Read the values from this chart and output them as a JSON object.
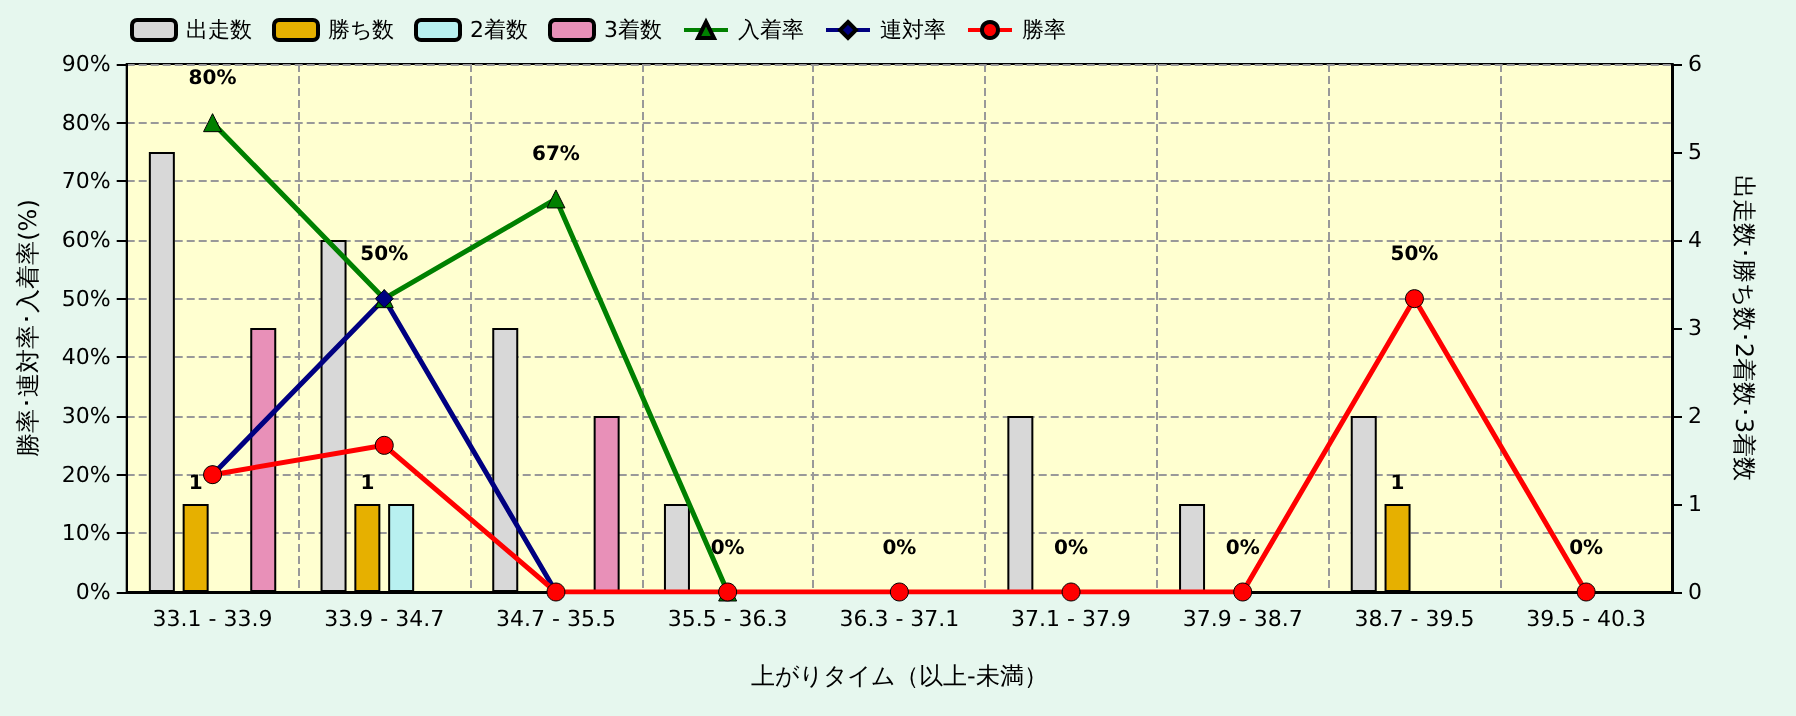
{
  "chart_data": {
    "type": "bar",
    "xlabel": "上がりタイム（以上-未満）",
    "ylabel": "勝率･連対率･入着率(%)",
    "y2label": "出走数･勝ち数･2着数･3着数",
    "categories": [
      "33.1 - 33.9",
      "33.9 - 34.7",
      "34.7 - 35.5",
      "35.5 - 36.3",
      "36.3 - 37.1",
      "37.1 - 37.9",
      "37.9 - 38.7",
      "38.7 - 39.5",
      "39.5 - 40.3"
    ],
    "series": [
      {
        "name": "出走数",
        "axis": "y2",
        "color": "#d8d8d8",
        "values": [
          5,
          4,
          3,
          1,
          null,
          2,
          1,
          2,
          null
        ]
      },
      {
        "name": "勝ち数",
        "axis": "y2",
        "color": "#e6b000",
        "values": [
          1,
          1,
          null,
          null,
          null,
          null,
          null,
          1,
          null
        ],
        "value_labels": [
          "1",
          "1",
          null,
          null,
          null,
          null,
          null,
          "1",
          null
        ]
      },
      {
        "name": "2着数",
        "axis": "y2",
        "color": "#b8f0f0",
        "values": [
          null,
          1,
          null,
          null,
          null,
          null,
          null,
          null,
          null
        ]
      },
      {
        "name": "3着数",
        "axis": "y2",
        "color": "#e890b8",
        "values": [
          3,
          null,
          2,
          null,
          null,
          null,
          null,
          null,
          null
        ]
      },
      {
        "name": "入着率",
        "type": "line",
        "marker": "triangle",
        "color": "#008000",
        "values": [
          80,
          50,
          67,
          0,
          null,
          null,
          null,
          null,
          null
        ],
        "value_labels": [
          "80%",
          "50%",
          "67%",
          "0%",
          null,
          null,
          null,
          null,
          null
        ]
      },
      {
        "name": "連対率",
        "type": "line",
        "marker": "diamond",
        "color": "#000080",
        "values": [
          20,
          50,
          0,
          null,
          null,
          null,
          null,
          null,
          null
        ]
      },
      {
        "name": "勝率",
        "type": "line",
        "marker": "circle",
        "color": "#ff0000",
        "values": [
          20,
          25,
          0,
          0,
          0,
          0,
          0,
          50,
          0
        ],
        "value_labels": [
          null,
          null,
          null,
          null,
          "0%",
          "0%",
          "0%",
          "50%",
          "0%"
        ]
      }
    ],
    "ylim": [
      0,
      90
    ],
    "yticks": [
      {
        "value": 0,
        "label": "0%"
      },
      {
        "value": 10,
        "label": "10%"
      },
      {
        "value": 20,
        "label": "20%"
      },
      {
        "value": 30,
        "label": "30%"
      },
      {
        "value": 40,
        "label": "40%"
      },
      {
        "value": 50,
        "label": "50%"
      },
      {
        "value": 60,
        "label": "60%"
      },
      {
        "value": 70,
        "label": "70%"
      },
      {
        "value": 80,
        "label": "80%"
      },
      {
        "value": 90,
        "label": "90%"
      }
    ],
    "y2lim": [
      0,
      6
    ],
    "y2ticks": [
      0,
      1,
      2,
      3,
      4,
      5,
      6
    ],
    "grid": true,
    "legend": "top left"
  }
}
